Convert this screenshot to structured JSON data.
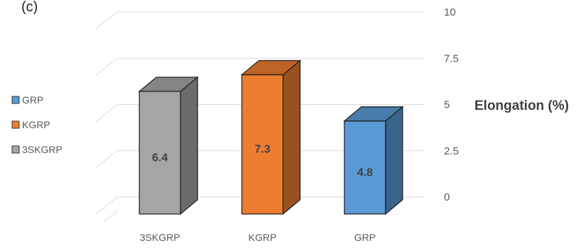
{
  "chart_data": {
    "type": "bar",
    "title": "(c)",
    "categories": [
      "3SKGRP",
      "KGRP",
      "GRP"
    ],
    "values": [
      6.4,
      7.3,
      4.8
    ],
    "data_labels": [
      "6.4",
      "7.3",
      "4.8"
    ],
    "colors": {
      "3SKGRP": "#a5a5a5",
      "KGRP": "#ed7d31",
      "GRP": "#5b9bd5"
    },
    "ylabel": "Elongation (%)",
    "ylim": [
      0,
      10
    ],
    "yticks": [
      "0",
      "2.5",
      "5",
      "7.5",
      "10"
    ],
    "legend": {
      "position": "left",
      "entries": [
        "GRP",
        "KGRP",
        "3SKGRP"
      ]
    },
    "grid": true,
    "style": "3d"
  }
}
